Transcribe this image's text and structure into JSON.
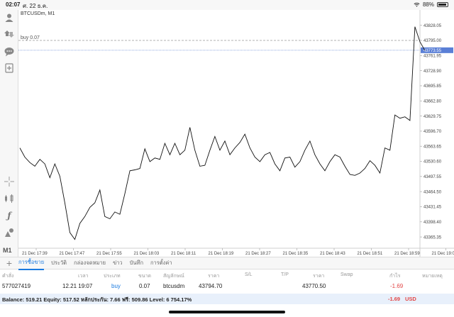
{
  "status_bar": {
    "time": "02:07",
    "date": "ศ. 22 ธ.ค.",
    "battery": "88%",
    "battery_level": 0.88
  },
  "toolbar": {
    "icons": [
      "account-icon",
      "trade-icon",
      "chat-icon",
      "new-order-icon",
      "crosshair-icon",
      "indicators-icon",
      "function-icon",
      "objects-icon"
    ],
    "timeframe": "M1"
  },
  "chart": {
    "symbol": "BTCUSDm, M1",
    "buy_label": "buy 0.07",
    "buy_price_tag": "43795.00",
    "current_price_tag": "43773.55",
    "colors": {
      "line": "#111111",
      "grid": "#e6e6e6",
      "bid_line": "#6b8cd6",
      "order_line": "#999999",
      "price_tag_bg": "#5a7fd6"
    }
  },
  "chart_data": {
    "type": "line",
    "title": "BTCUSDm, M1",
    "xlabel": "",
    "ylabel": "",
    "ylim": [
      43350.0,
      43840.0
    ],
    "y_ticks": [
      43828.05,
      43795.0,
      43761.95,
      43728.9,
      43695.85,
      43662.8,
      43629.75,
      43596.7,
      43563.65,
      43530.6,
      43497.55,
      43464.5,
      43431.45,
      43398.4,
      43365.35
    ],
    "x_ticks": [
      "21 Dec 17:39",
      "21 Dec 17:47",
      "21 Dec 17:55",
      "21 Dec 18:03",
      "21 Dec 18:11",
      "21 Dec 18:19",
      "21 Dec 18:27",
      "21 Dec 18:35",
      "21 Dec 18:43",
      "21 Dec 18:51",
      "21 Dec 18:59",
      "21 Dec 19:07"
    ],
    "series": [
      {
        "values": [
          43560,
          43540,
          43528,
          43520,
          43535,
          43525,
          43495,
          43525,
          43498,
          43440,
          43375,
          43360,
          43395,
          43410,
          43430,
          43440,
          43468,
          43410,
          43405,
          43420,
          43415,
          43460,
          43510,
          43512,
          43515,
          43558,
          43530,
          43538,
          43535,
          43570,
          43545,
          43570,
          43545,
          43555,
          43605,
          43555,
          43520,
          43522,
          43555,
          43585,
          43555,
          43575,
          43545,
          43560,
          43572,
          43590,
          43560,
          43540,
          43530,
          43545,
          43550,
          43525,
          43510,
          43538,
          43540,
          43518,
          43530,
          43555,
          43575,
          43545,
          43525,
          43510,
          43530,
          43545,
          43540,
          43520,
          43502,
          43500,
          43505,
          43515,
          43532,
          43522,
          43505,
          43560,
          43555,
          43632,
          43625,
          43628,
          43620,
          43825,
          43792,
          43773
        ]
      }
    ]
  },
  "tabs": [
    "การซื้อขาย",
    "ประวัติ",
    "กล่องจดหมาย",
    "ข่าว",
    "บันทึก",
    "การตั้งค่า"
  ],
  "table": {
    "headers": [
      "คำสั่ง",
      "เวลา",
      "ประเภท",
      "ขนาด",
      "สัญลักษณ์",
      "ราคา",
      "S/L",
      "T/P",
      "ราคา",
      "Swap",
      "กำไร",
      "หมายเหตุ"
    ],
    "row": {
      "ticket": "577027419",
      "time": "12.21 19:07",
      "type": "buy",
      "size": "0.07",
      "symbol": "btcusdm",
      "open_price": "43794.70",
      "sl": "",
      "tp": "",
      "price": "43770.50",
      "swap": "",
      "profit": "-1.69",
      "comment": ""
    }
  },
  "balance": {
    "summary": "Balance: 519.21 Equity: 517.52 หลักประกัน: 7.66 ฟรี: 509.86 Level: 6 754.17%",
    "profit": "-1.69",
    "currency": "USD"
  }
}
